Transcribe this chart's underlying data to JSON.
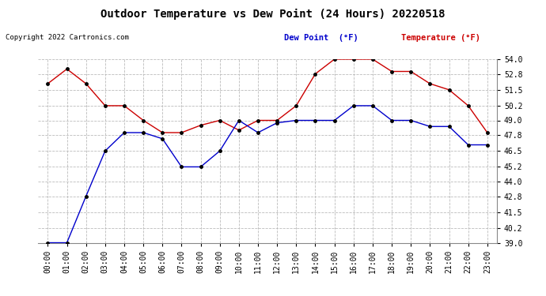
{
  "title": "Outdoor Temperature vs Dew Point (24 Hours) 20220518",
  "copyright": "Copyright 2022 Cartronics.com",
  "legend_dew": "Dew Point  (°F)",
  "legend_temp": "Temperature (°F)",
  "hours": [
    0,
    1,
    2,
    3,
    4,
    5,
    6,
    7,
    8,
    9,
    10,
    11,
    12,
    13,
    14,
    15,
    16,
    17,
    18,
    19,
    20,
    21,
    22,
    23
  ],
  "xtick_labels": [
    "00:00",
    "01:00",
    "02:00",
    "03:00",
    "04:00",
    "05:00",
    "06:00",
    "07:00",
    "08:00",
    "09:00",
    "10:00",
    "11:00",
    "12:00",
    "13:00",
    "14:00",
    "15:00",
    "16:00",
    "17:00",
    "18:00",
    "19:00",
    "20:00",
    "21:00",
    "22:00",
    "23:00"
  ],
  "temperature": [
    52.0,
    53.2,
    52.0,
    50.2,
    50.2,
    49.0,
    48.0,
    48.0,
    48.6,
    49.0,
    48.2,
    49.0,
    49.0,
    50.2,
    52.8,
    54.0,
    54.0,
    54.0,
    53.0,
    53.0,
    52.0,
    51.5,
    50.2,
    48.0
  ],
  "dew_point": [
    39.0,
    39.0,
    42.8,
    46.5,
    48.0,
    48.0,
    47.5,
    45.2,
    45.2,
    46.5,
    49.0,
    48.0,
    48.8,
    49.0,
    49.0,
    49.0,
    50.2,
    50.2,
    49.0,
    49.0,
    48.5,
    48.5,
    47.0,
    47.0
  ],
  "temp_color": "#cc0000",
  "dew_color": "#0000cc",
  "marker_color": "black",
  "ylim_min": 39.0,
  "ylim_max": 54.0,
  "ytick_values": [
    39.0,
    40.2,
    41.5,
    42.8,
    44.0,
    45.2,
    46.5,
    47.8,
    49.0,
    50.2,
    51.5,
    52.8,
    54.0
  ],
  "bg_color": "#ffffff",
  "grid_color": "#bbbbbb",
  "title_fontsize": 10,
  "tick_fontsize": 7,
  "copyright_fontsize": 6.5,
  "legend_fontsize": 7.5
}
